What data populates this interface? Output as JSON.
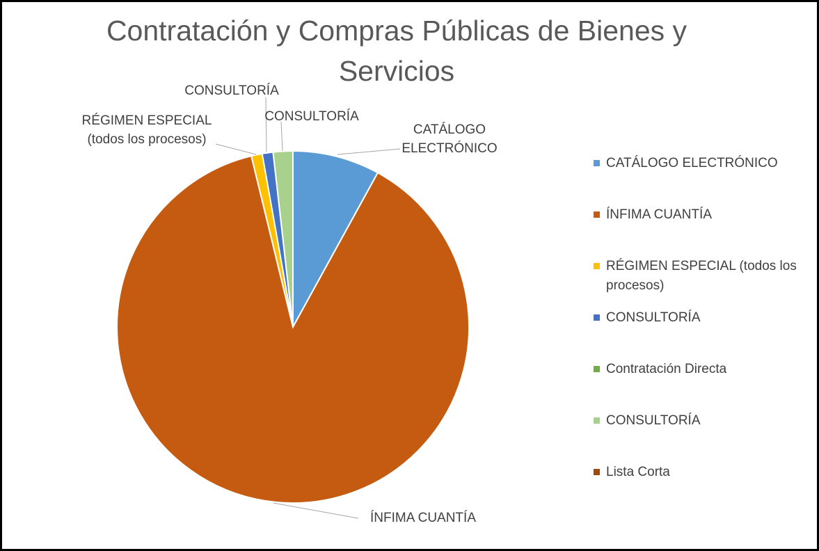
{
  "chart_data": {
    "type": "pie",
    "title": "Contratación y Compras Públicas de Bienes y Servicios",
    "categories": [
      "CATÁLOGO ELECTRÓNICO",
      "ÍNFIMA CUANTÍA",
      "RÉGIMEN ESPECIAL (todos los procesos)",
      "CONSULTORÍA",
      "Contratación Directa",
      "CONSULTORÍA",
      "Lista Corta"
    ],
    "values": [
      8,
      88.2,
      1,
      1,
      0,
      1.8,
      0
    ],
    "colors": [
      "#5b9bd5",
      "#c55a11",
      "#ffc000",
      "#4472c4",
      "#70ad47",
      "#a9d18e",
      "#9e480e"
    ],
    "legend": "right"
  }
}
